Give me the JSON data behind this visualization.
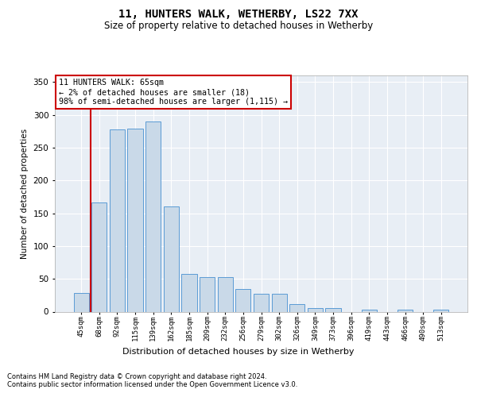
{
  "title1": "11, HUNTERS WALK, WETHERBY, LS22 7XX",
  "title2": "Size of property relative to detached houses in Wetherby",
  "xlabel": "Distribution of detached houses by size in Wetherby",
  "ylabel": "Number of detached properties",
  "footnote1": "Contains HM Land Registry data © Crown copyright and database right 2024.",
  "footnote2": "Contains public sector information licensed under the Open Government Licence v3.0.",
  "annotation_line1": "11 HUNTERS WALK: 65sqm",
  "annotation_line2": "← 2% of detached houses are smaller (18)",
  "annotation_line3": "98% of semi-detached houses are larger (1,115) →",
  "bar_color": "#c9d9e8",
  "bar_edge_color": "#5b9bd5",
  "highlight_color": "#cc0000",
  "bg_color": "#e8eef5",
  "categories": [
    "45sqm",
    "68sqm",
    "92sqm",
    "115sqm",
    "139sqm",
    "162sqm",
    "185sqm",
    "209sqm",
    "232sqm",
    "256sqm",
    "279sqm",
    "302sqm",
    "326sqm",
    "349sqm",
    "373sqm",
    "396sqm",
    "419sqm",
    "443sqm",
    "466sqm",
    "490sqm",
    "513sqm"
  ],
  "values": [
    28,
    166,
    278,
    279,
    290,
    160,
    58,
    53,
    53,
    35,
    27,
    27,
    11,
    5,
    5,
    0,
    3,
    0,
    3,
    0,
    3
  ],
  "ylim": [
    0,
    360
  ],
  "yticks": [
    0,
    50,
    100,
    150,
    200,
    250,
    300,
    350
  ],
  "red_line_x": 0.5
}
